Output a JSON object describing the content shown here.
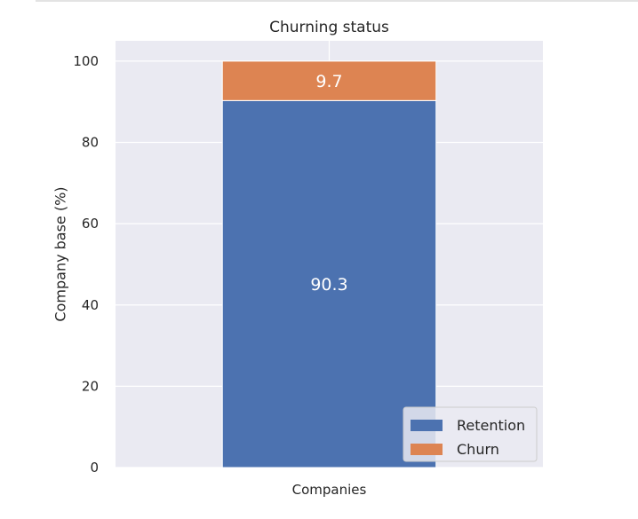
{
  "chart_data": {
    "type": "bar",
    "stacked": true,
    "title": "Churning status",
    "xlabel": "",
    "ylabel": "Company base (%)",
    "categories": [
      "Companies"
    ],
    "series": [
      {
        "name": "Retention",
        "values": [
          90.3
        ],
        "color": "#4c72b0"
      },
      {
        "name": "Churn",
        "values": [
          9.7
        ],
        "color": "#dd8452"
      }
    ],
    "data_labels": [
      "90.3",
      "9.7"
    ],
    "ylim": [
      0,
      105
    ],
    "yticks": [
      0,
      20,
      40,
      60,
      80,
      100
    ],
    "grid": true,
    "legend": "bottom-right",
    "background": "#eaeaf2"
  }
}
